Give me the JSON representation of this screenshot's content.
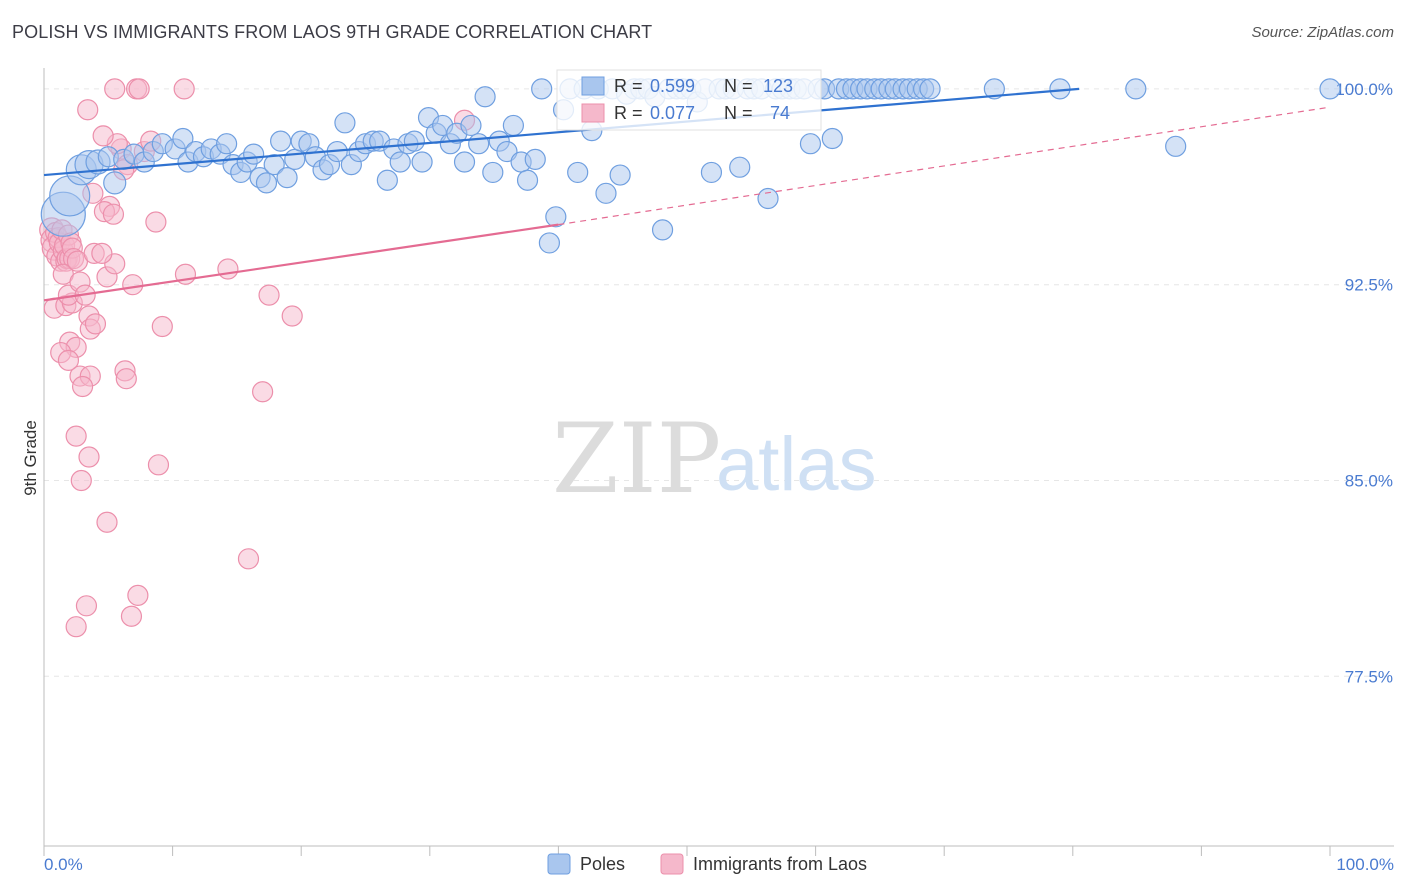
{
  "header": {
    "title": "POLISH VS IMMIGRANTS FROM LAOS 9TH GRADE CORRELATION CHART",
    "source": "Source: ZipAtlas.com"
  },
  "watermark": {
    "zip": "ZIP",
    "atlas": "atlas"
  },
  "colors": {
    "blue_fill": "#a9c6ee",
    "blue_stroke": "#6f9fe0",
    "blue_line": "#2f72d0",
    "pink_fill": "#f5b8cb",
    "pink_stroke": "#ec8fab",
    "pink_line": "#e46b92",
    "axis_text": "#4a7bd0",
    "grid": "#e6e6e6"
  },
  "stats": {
    "r_label": "R =",
    "n_label": "N =",
    "poles": {
      "r": "0.599",
      "n": "123"
    },
    "laos": {
      "r": "0.077",
      "n": "74"
    }
  },
  "legend": {
    "poles": "Poles",
    "laos": "Immigrants from Laos"
  },
  "chart_data": {
    "type": "scatter",
    "title": "POLISH VS IMMIGRANTS FROM LAOS 9TH GRADE CORRELATION CHART",
    "xlabel": "",
    "ylabel": "9th Grade",
    "xlim": [
      0,
      100
    ],
    "ylim": [
      71.0,
      100.8
    ],
    "x_tick_labels": [
      "0.0%",
      "100.0%"
    ],
    "y_ticks": [
      {
        "value": 100.0,
        "label": "100.0%"
      },
      {
        "value": 92.5,
        "label": "92.5%"
      },
      {
        "value": 85.0,
        "label": "85.0%"
      },
      {
        "value": 77.5,
        "label": "77.5%"
      }
    ],
    "grid": "horizontal dashed",
    "legend_position": "bottom-center",
    "series": [
      {
        "name": "Poles",
        "color": "#a9c6ee",
        "trend": {
          "x": [
            0,
            80.5
          ],
          "y": [
            96.7,
            100.0
          ],
          "dashed_to": null
        },
        "points": [
          [
            1.5,
            95.2,
            2.2
          ],
          [
            2.0,
            95.9,
            2.0
          ],
          [
            2.9,
            96.9,
            1.5
          ],
          [
            3.5,
            97.1,
            1.4
          ],
          [
            4.2,
            97.2,
            1.2
          ],
          [
            5.0,
            97.4,
            1.0
          ],
          [
            5.5,
            96.4,
            1.1
          ],
          [
            6.2,
            97.3,
            1.0
          ],
          [
            7.0,
            97.5,
            1.0
          ],
          [
            7.8,
            97.2,
            1.0
          ],
          [
            8.5,
            97.6,
            1.0
          ],
          [
            9.2,
            97.9,
            1.0
          ],
          [
            10.2,
            97.7,
            1.0
          ],
          [
            10.8,
            98.1,
            1.0
          ],
          [
            11.2,
            97.2,
            1.0
          ],
          [
            11.8,
            97.6,
            1.0
          ],
          [
            12.4,
            97.4,
            1.0
          ],
          [
            13.0,
            97.7,
            1.0
          ],
          [
            13.7,
            97.5,
            1.0
          ],
          [
            14.2,
            97.9,
            1.0
          ],
          [
            14.7,
            97.1,
            1.0
          ],
          [
            15.3,
            96.8,
            1.0
          ],
          [
            15.8,
            97.2,
            1.0
          ],
          [
            16.3,
            97.5,
            1.0
          ],
          [
            16.8,
            96.6,
            1.0
          ],
          [
            17.3,
            96.4,
            1.0
          ],
          [
            17.9,
            97.1,
            1.0
          ],
          [
            18.4,
            98.0,
            1.0
          ],
          [
            18.9,
            96.6,
            1.0
          ],
          [
            19.5,
            97.3,
            1.0
          ],
          [
            20.0,
            98.0,
            1.0
          ],
          [
            20.6,
            97.9,
            1.0
          ],
          [
            21.1,
            97.4,
            1.0
          ],
          [
            21.7,
            96.9,
            1.0
          ],
          [
            22.2,
            97.1,
            1.0
          ],
          [
            22.8,
            97.6,
            1.0
          ],
          [
            23.4,
            98.7,
            1.0
          ],
          [
            23.9,
            97.1,
            1.0
          ],
          [
            24.5,
            97.6,
            1.0
          ],
          [
            25.0,
            97.9,
            1.0
          ],
          [
            25.6,
            98.0,
            1.0
          ],
          [
            26.1,
            98.0,
            1.0
          ],
          [
            26.7,
            96.5,
            1.0
          ],
          [
            27.2,
            97.7,
            1.0
          ],
          [
            27.7,
            97.2,
            1.0
          ],
          [
            28.3,
            97.9,
            1.0
          ],
          [
            28.8,
            98.0,
            1.0
          ],
          [
            29.4,
            97.2,
            1.0
          ],
          [
            29.9,
            98.9,
            1.0
          ],
          [
            30.5,
            98.3,
            1.0
          ],
          [
            31.0,
            98.6,
            1.0
          ],
          [
            31.6,
            97.9,
            1.0
          ],
          [
            32.1,
            98.3,
            1.0
          ],
          [
            32.7,
            97.2,
            1.0
          ],
          [
            33.2,
            98.6,
            1.0
          ],
          [
            33.8,
            97.9,
            1.0
          ],
          [
            34.3,
            99.7,
            1.0
          ],
          [
            34.9,
            96.8,
            1.0
          ],
          [
            35.4,
            98.0,
            1.0
          ],
          [
            36.0,
            97.6,
            1.0
          ],
          [
            36.5,
            98.6,
            1.0
          ],
          [
            37.1,
            97.2,
            1.0
          ],
          [
            37.6,
            96.5,
            1.0
          ],
          [
            38.2,
            97.3,
            1.0
          ],
          [
            38.7,
            100.0,
            1.0
          ],
          [
            39.3,
            94.1,
            1.0
          ],
          [
            39.8,
            95.1,
            1.0
          ],
          [
            40.4,
            99.2,
            1.0
          ],
          [
            40.9,
            100.0,
            1.0
          ],
          [
            41.5,
            96.8,
            1.0
          ],
          [
            42.0,
            100.0,
            1.0
          ],
          [
            42.6,
            98.4,
            1.0
          ],
          [
            43.1,
            100.0,
            1.0
          ],
          [
            43.7,
            96.0,
            1.0
          ],
          [
            44.2,
            100.0,
            1.0
          ],
          [
            44.8,
            96.7,
            1.0
          ],
          [
            45.3,
            99.8,
            1.0
          ],
          [
            45.9,
            100.0,
            1.0
          ],
          [
            46.4,
            100.0,
            1.0
          ],
          [
            47.0,
            100.0,
            1.0
          ],
          [
            47.5,
            99.7,
            1.0
          ],
          [
            48.1,
            94.6,
            1.0
          ],
          [
            48.6,
            100.0,
            1.0
          ],
          [
            49.2,
            100.0,
            1.0
          ],
          [
            49.7,
            100.0,
            1.0
          ],
          [
            50.3,
            100.0,
            1.0
          ],
          [
            50.8,
            99.5,
            1.0
          ],
          [
            51.4,
            100.0,
            1.0
          ],
          [
            51.9,
            96.8,
            1.0
          ],
          [
            52.5,
            100.0,
            1.0
          ],
          [
            53.0,
            100.0,
            1.0
          ],
          [
            53.6,
            100.0,
            1.0
          ],
          [
            54.1,
            97.0,
            1.0
          ],
          [
            54.7,
            100.0,
            1.0
          ],
          [
            55.2,
            100.0,
            1.0
          ],
          [
            55.8,
            100.0,
            1.0
          ],
          [
            56.3,
            95.8,
            1.0
          ],
          [
            56.9,
            100.0,
            1.0
          ],
          [
            57.4,
            100.0,
            1.0
          ],
          [
            58.0,
            100.0,
            1.0
          ],
          [
            58.5,
            100.0,
            1.0
          ],
          [
            59.1,
            100.0,
            1.0
          ],
          [
            59.6,
            97.9,
            1.0
          ],
          [
            60.2,
            100.0,
            1.0
          ],
          [
            60.7,
            100.0,
            1.0
          ],
          [
            61.3,
            98.1,
            1.0
          ],
          [
            61.8,
            100.0,
            1.0
          ],
          [
            62.4,
            100.0,
            1.0
          ],
          [
            62.9,
            100.0,
            1.0
          ],
          [
            63.5,
            100.0,
            1.0
          ],
          [
            64.0,
            100.0,
            1.0
          ],
          [
            64.6,
            100.0,
            1.0
          ],
          [
            65.1,
            100.0,
            1.0
          ],
          [
            65.7,
            100.0,
            1.0
          ],
          [
            66.2,
            100.0,
            1.0
          ],
          [
            66.8,
            100.0,
            1.0
          ],
          [
            67.3,
            100.0,
            1.0
          ],
          [
            67.9,
            100.0,
            1.0
          ],
          [
            68.4,
            100.0,
            1.0
          ],
          [
            68.9,
            100.0,
            1.0
          ],
          [
            73.9,
            100.0,
            1.0
          ],
          [
            79.0,
            100.0,
            1.0
          ],
          [
            84.9,
            100.0,
            1.0
          ],
          [
            88.0,
            97.8,
            1.0
          ],
          [
            100.0,
            100.0,
            1.0
          ]
        ]
      },
      {
        "name": "Immigrants from Laos",
        "color": "#f5b8cb",
        "trend": {
          "x": [
            0,
            40.0
          ],
          "y": [
            91.9,
            94.8
          ],
          "dashed_to": {
            "x": 100.0,
            "y": 99.3
          }
        },
        "points": [
          [
            0.6,
            94.6,
            1.2
          ],
          [
            0.7,
            94.2,
            1.2
          ],
          [
            0.8,
            93.9,
            1.2
          ],
          [
            0.9,
            94.5,
            1.0
          ],
          [
            1.0,
            93.6,
            1.0
          ],
          [
            1.1,
            94.3,
            1.0
          ],
          [
            1.2,
            94.1,
            1.0
          ],
          [
            1.3,
            93.4,
            1.0
          ],
          [
            1.4,
            94.6,
            1.0
          ],
          [
            1.5,
            93.8,
            1.0
          ],
          [
            1.6,
            94.0,
            1.0
          ],
          [
            1.7,
            93.4,
            1.0
          ],
          [
            1.8,
            93.5,
            1.0
          ],
          [
            1.9,
            94.4,
            1.0
          ],
          [
            2.0,
            93.5,
            1.0
          ],
          [
            2.1,
            94.1,
            1.0
          ],
          [
            2.2,
            93.9,
            1.0
          ],
          [
            2.3,
            93.5,
            1.0
          ],
          [
            1.5,
            92.9,
            1.0
          ],
          [
            2.6,
            93.4,
            1.0
          ],
          [
            0.8,
            91.6,
            1.0
          ],
          [
            1.7,
            91.7,
            1.0
          ],
          [
            2.2,
            91.8,
            1.0
          ],
          [
            1.9,
            92.1,
            1.0
          ],
          [
            2.8,
            92.6,
            1.0
          ],
          [
            3.2,
            92.1,
            1.0
          ],
          [
            3.5,
            91.3,
            1.0
          ],
          [
            3.6,
            90.8,
            1.0
          ],
          [
            4.0,
            91.0,
            1.0
          ],
          [
            2.0,
            90.3,
            1.0
          ],
          [
            2.5,
            90.1,
            1.0
          ],
          [
            1.3,
            89.9,
            1.0
          ],
          [
            2.8,
            89.0,
            1.0
          ],
          [
            3.6,
            89.0,
            1.0
          ],
          [
            1.9,
            89.6,
            1.0
          ],
          [
            3.0,
            88.6,
            1.0
          ],
          [
            6.3,
            89.2,
            1.0
          ],
          [
            6.4,
            88.9,
            1.0
          ],
          [
            2.5,
            86.7,
            1.0
          ],
          [
            3.5,
            85.9,
            1.0
          ],
          [
            2.9,
            85.0,
            1.0
          ],
          [
            4.9,
            83.4,
            1.0
          ],
          [
            2.5,
            79.4,
            1.0
          ],
          [
            3.3,
            80.2,
            1.0
          ],
          [
            6.8,
            79.8,
            1.0
          ],
          [
            7.3,
            80.6,
            1.0
          ],
          [
            11.0,
            92.9,
            1.0
          ],
          [
            14.3,
            93.1,
            1.0
          ],
          [
            17.0,
            88.4,
            1.0
          ],
          [
            17.5,
            92.1,
            1.0
          ],
          [
            9.2,
            90.9,
            1.0
          ],
          [
            15.9,
            82.0,
            1.0
          ],
          [
            8.9,
            85.6,
            1.0
          ],
          [
            19.3,
            91.3,
            1.0
          ],
          [
            7.8,
            97.6,
            1.0
          ],
          [
            6.0,
            97.7,
            1.0
          ],
          [
            5.7,
            97.9,
            1.0
          ],
          [
            4.6,
            98.2,
            1.0
          ],
          [
            3.4,
            99.2,
            1.0
          ],
          [
            5.5,
            100.0,
            1.0
          ],
          [
            7.2,
            100.0,
            1.0
          ],
          [
            7.4,
            100.0,
            1.0
          ],
          [
            10.9,
            100.0,
            1.0
          ],
          [
            3.8,
            96.0,
            1.0
          ],
          [
            5.1,
            95.5,
            1.0
          ],
          [
            4.7,
            95.3,
            1.0
          ],
          [
            5.4,
            95.2,
            1.0
          ],
          [
            8.7,
            94.9,
            1.0
          ],
          [
            4.9,
            92.8,
            1.0
          ],
          [
            5.5,
            93.3,
            1.0
          ],
          [
            6.9,
            92.5,
            1.0
          ],
          [
            3.9,
            93.7,
            1.0
          ],
          [
            4.5,
            93.7,
            1.0
          ],
          [
            6.5,
            97.1,
            1.0
          ],
          [
            6.2,
            96.9,
            1.0
          ],
          [
            8.3,
            98.0,
            1.0
          ],
          [
            32.7,
            98.8,
            1.0
          ]
        ]
      }
    ]
  }
}
